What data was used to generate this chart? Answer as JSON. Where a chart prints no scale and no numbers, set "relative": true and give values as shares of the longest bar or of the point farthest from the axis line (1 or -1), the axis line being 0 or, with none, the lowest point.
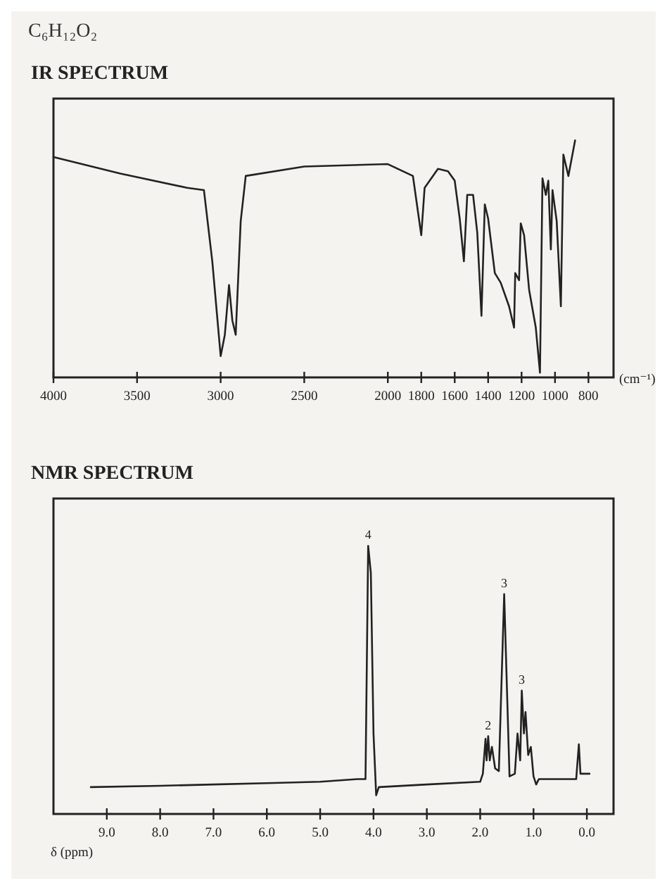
{
  "chart_data": [
    {
      "type": "line",
      "title": "IR SPECTRUM",
      "annotations": [
        "C₆H₁₂O₂"
      ],
      "xlabel": "(cm⁻¹)",
      "relative": true,
      "color": "#222222",
      "xlim": [
        4000,
        650
      ],
      "xticks": [
        4000,
        3500,
        3000,
        2500,
        2000,
        1800,
        1600,
        1400,
        1200,
        1000,
        800
      ],
      "x": [
        4000,
        3600,
        3200,
        3100,
        3050,
        3000,
        2975,
        2950,
        2930,
        2910,
        2880,
        2850,
        2500,
        2000,
        1850,
        1800,
        1780,
        1700,
        1640,
        1600,
        1570,
        1545,
        1525,
        1490,
        1465,
        1440,
        1420,
        1400,
        1360,
        1325,
        1275,
        1245,
        1238,
        1215,
        1205,
        1185,
        1155,
        1115,
        1090,
        1075,
        1055,
        1040,
        1025,
        1015,
        990,
        965,
        950,
        920,
        880
      ],
      "values": [
        0.93,
        0.86,
        0.8,
        0.79,
        0.49,
        0.09,
        0.18,
        0.39,
        0.24,
        0.18,
        0.66,
        0.85,
        0.89,
        0.9,
        0.85,
        0.6,
        0.8,
        0.88,
        0.87,
        0.83,
        0.67,
        0.49,
        0.77,
        0.77,
        0.61,
        0.26,
        0.73,
        0.67,
        0.44,
        0.4,
        0.3,
        0.21,
        0.44,
        0.41,
        0.65,
        0.6,
        0.37,
        0.21,
        0.02,
        0.84,
        0.77,
        0.83,
        0.54,
        0.79,
        0.66,
        0.3,
        0.94,
        0.85,
        1
      ]
    },
    {
      "type": "line",
      "title": "NMR SPECTRUM",
      "xlabel": "δ (ppm)",
      "relative": true,
      "color": "#222222",
      "xlim": [
        10,
        -0.5
      ],
      "xticks": [
        {
          "value": 9,
          "label": "9.0"
        },
        {
          "value": 8,
          "label": "8.0"
        },
        {
          "value": 7,
          "label": "7.0"
        },
        {
          "value": 6,
          "label": "6.0"
        },
        {
          "value": 5,
          "label": "5.0"
        },
        {
          "value": 4,
          "label": "4.0"
        },
        {
          "value": 3,
          "label": "3.0"
        },
        {
          "value": 2,
          "label": "2.0"
        },
        {
          "value": 1,
          "label": "1.0"
        },
        {
          "value": 0,
          "label": "0.0"
        }
      ],
      "annotations": [
        {
          "text": "4",
          "x": 4.1,
          "y": 1
        },
        {
          "text": "3",
          "x": 1.55,
          "y": 0.82
        },
        {
          "text": "3",
          "x": 1.22,
          "y": 0.46
        },
        {
          "text": "2",
          "x": 1.85,
          "y": 0.29
        }
      ],
      "x": [
        9.3,
        8,
        7,
        6,
        5,
        4.3,
        4.15,
        4.1,
        4.05,
        4,
        3.95,
        3.9,
        3,
        2,
        1.95,
        1.9,
        1.88,
        1.85,
        1.82,
        1.78,
        1.72,
        1.65,
        1.55,
        1.45,
        1.35,
        1.3,
        1.25,
        1.22,
        1.18,
        1.15,
        1.1,
        1.05,
        1,
        0.95,
        0.9,
        0.5,
        0.2,
        0.15,
        0.12,
        0,
        -0.05
      ],
      "values": [
        0.1,
        0.105,
        0.11,
        0.115,
        0.12,
        0.13,
        0.13,
        1,
        0.9,
        0.3,
        0.07,
        0.1,
        0.11,
        0.12,
        0.15,
        0.28,
        0.2,
        0.29,
        0.2,
        0.25,
        0.17,
        0.16,
        0.82,
        0.14,
        0.15,
        0.3,
        0.2,
        0.46,
        0.3,
        0.38,
        0.22,
        0.25,
        0.14,
        0.11,
        0.13,
        0.13,
        0.13,
        0.26,
        0.15,
        0.15,
        0.15
      ]
    }
  ]
}
